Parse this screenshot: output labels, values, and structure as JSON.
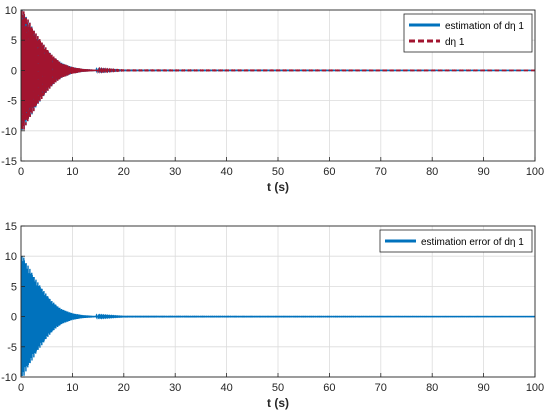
{
  "chart_data": [
    {
      "type": "line",
      "xlabel": "t (s)",
      "ylabel": "",
      "xlim": [
        0,
        100
      ],
      "ylim": [
        -15,
        10
      ],
      "xticks": [
        0,
        10,
        20,
        30,
        40,
        50,
        60,
        70,
        80,
        90,
        100
      ],
      "yticks": [
        -15,
        -10,
        -5,
        0,
        5,
        10
      ],
      "grid": true,
      "legend_position": "top-right",
      "series": [
        {
          "name": "estimation of dη 1",
          "color": "#0072BD",
          "style": "solid",
          "envelope": {
            "t": [
              0,
              0.5,
              1,
              2,
              3,
              4,
              5,
              6,
              7,
              8,
              10,
              12,
              15,
              20,
              100
            ],
            "amp": [
              10,
              10,
              9,
              7.5,
              6,
              4.8,
              3.6,
              2.6,
              1.8,
              1.2,
              0.55,
              0.25,
              0.08,
              0.02,
              0.01
            ]
          }
        },
        {
          "name": "dη 1",
          "color": "#D95319",
          "stroke_color": "#A2142F",
          "style": "dashed",
          "envelope": {
            "t": [
              0,
              0.5,
              1,
              2,
              3,
              4,
              5,
              6,
              7,
              8,
              10,
              12,
              15,
              20,
              100
            ],
            "amp": [
              10,
              10,
              9,
              7.5,
              6,
              4.8,
              3.6,
              2.6,
              1.8,
              1.2,
              0.55,
              0.25,
              0.08,
              0.02,
              0.01
            ]
          }
        }
      ]
    },
    {
      "type": "line",
      "xlabel": "t (s)",
      "ylabel": "",
      "xlim": [
        0,
        100
      ],
      "ylim": [
        -10,
        15
      ],
      "xticks": [
        0,
        10,
        20,
        30,
        40,
        50,
        60,
        70,
        80,
        90,
        100
      ],
      "yticks": [
        -10,
        -5,
        0,
        5,
        10,
        15
      ],
      "grid": true,
      "legend_position": "top-right",
      "series": [
        {
          "name": "estimation error of dη 1",
          "color": "#0072BD",
          "style": "solid",
          "envelope": {
            "t": [
              0,
              0.5,
              1,
              2,
              3,
              4,
              5,
              6,
              7,
              8,
              10,
              12,
              15,
              20,
              100
            ],
            "amp": [
              10,
              10,
              9,
              7.5,
              6,
              4.8,
              3.6,
              2.6,
              1.8,
              1.2,
              0.55,
              0.25,
              0.08,
              0.02,
              0.01
            ]
          }
        }
      ]
    }
  ]
}
